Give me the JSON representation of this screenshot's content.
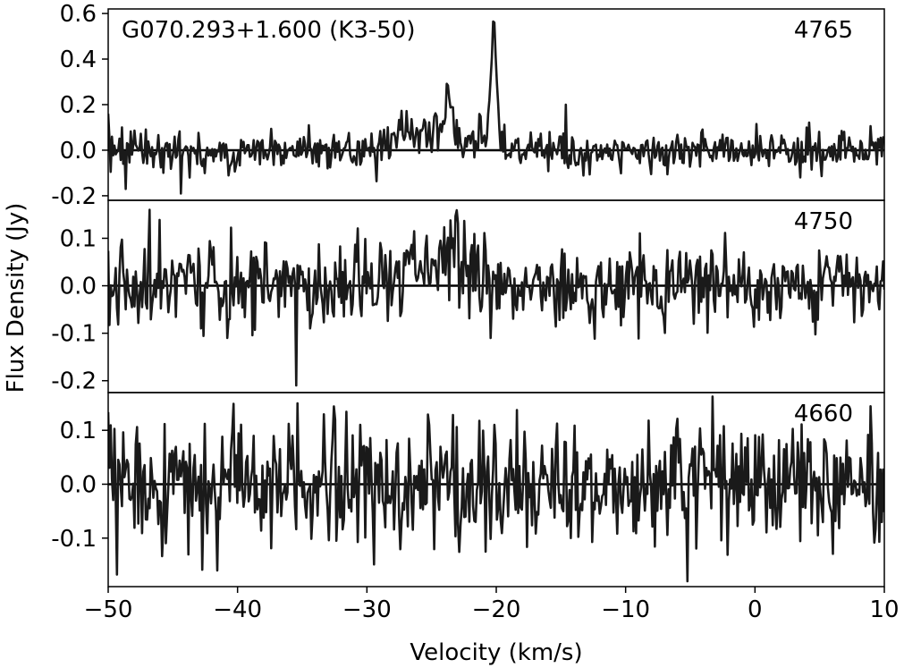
{
  "chart_data": {
    "type": "line",
    "title": "G070.293+1.600 (K3-50)",
    "xlabel": "Velocity (km/s)",
    "ylabel": "Flux Density (Jy)",
    "xlim": [
      -50,
      10
    ],
    "x_ticks": [
      -50,
      -40,
      -30,
      -20,
      -10,
      0,
      10
    ],
    "x_tick_labels": [
      "−50",
      "−40",
      "−30",
      "−20",
      "−10",
      "0",
      "10"
    ],
    "sharex": true,
    "line_color": "#1a1a1a",
    "zero_line": true,
    "panels": [
      {
        "label": "4765",
        "ylim": [
          -0.22,
          0.62
        ],
        "y_ticks": [
          -0.2,
          0.0,
          0.2,
          0.4,
          0.6
        ],
        "y_tick_labels": [
          "-0.2",
          "0.0",
          "0.2",
          "0.4",
          "0.6"
        ],
        "noise_rms": 0.045,
        "seed": 4765,
        "features": [
          {
            "type": "gaussian",
            "center": -20.2,
            "amplitude": 0.54,
            "sigma": 0.22
          },
          {
            "type": "gaussian",
            "center": -23.6,
            "amplitude": 0.2,
            "sigma": 0.3
          },
          {
            "type": "gaussian",
            "center": -24.5,
            "amplitude": 0.08,
            "sigma": 0.8
          },
          {
            "type": "gaussian",
            "center": -27.0,
            "amplitude": 0.09,
            "sigma": 1.0
          },
          {
            "type": "gaussian",
            "center": -21.5,
            "amplitude": 0.06,
            "sigma": 0.6
          }
        ],
        "spikes": [
          {
            "x": -48.6,
            "y": -0.17
          },
          {
            "x": -44.4,
            "y": -0.19
          },
          {
            "x": -14.6,
            "y": 0.2
          },
          {
            "x": -50.0,
            "y": 0.16
          }
        ]
      },
      {
        "label": "4750",
        "ylim": [
          -0.225,
          0.18
        ],
        "y_ticks": [
          -0.2,
          -0.1,
          0.0,
          0.1
        ],
        "y_tick_labels": [
          "-0.2",
          "-0.1",
          "0.0",
          "0.1"
        ],
        "noise_rms": 0.045,
        "seed": 4750,
        "features": [
          {
            "type": "gaussian",
            "center": -24.5,
            "amplitude": 0.065,
            "sigma": 2.5
          }
        ],
        "spikes": [
          {
            "x": -35.5,
            "y": -0.21
          },
          {
            "x": -46.8,
            "y": 0.16
          },
          {
            "x": -20.4,
            "y": -0.11
          }
        ]
      },
      {
        "label": "4660",
        "ylim": [
          -0.19,
          0.17
        ],
        "y_ticks": [
          -0.1,
          0.0,
          0.1
        ],
        "y_tick_labels": [
          "-0.1",
          "0.0",
          "0.1"
        ],
        "noise_rms": 0.055,
        "seed": 4660,
        "features": [],
        "spikes": [
          {
            "x": -5.2,
            "y": -0.18
          },
          {
            "x": -41.6,
            "y": -0.16
          },
          {
            "x": -35.4,
            "y": 0.15
          }
        ]
      }
    ]
  }
}
